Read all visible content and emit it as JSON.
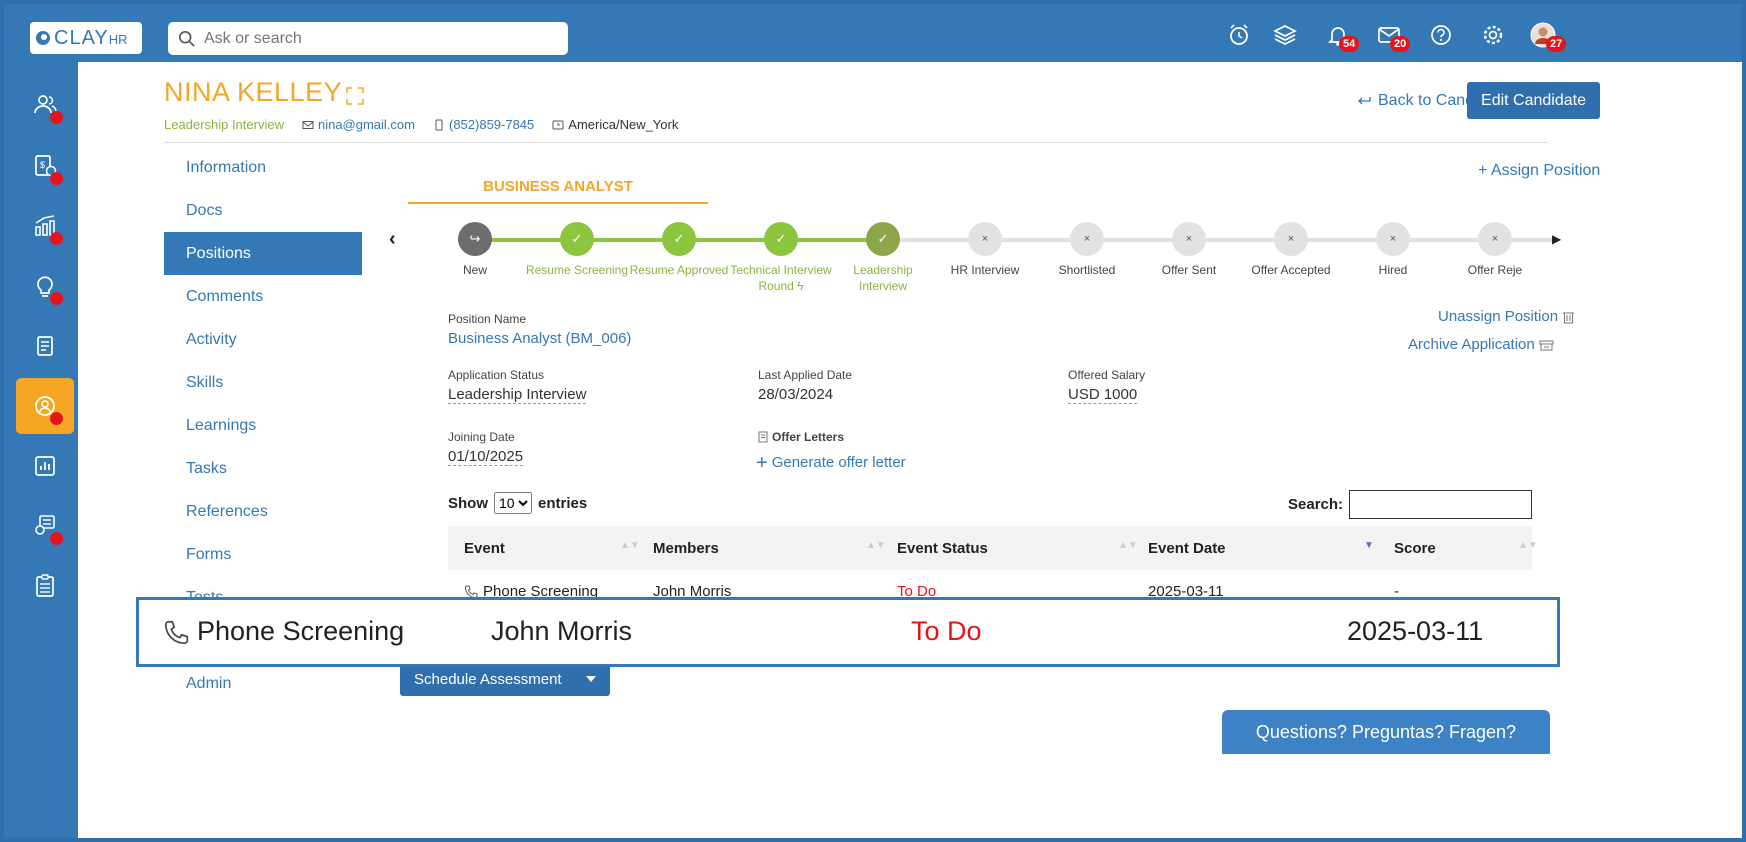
{
  "brand": {
    "name": "CLAY",
    "suffix": "HR"
  },
  "search": {
    "placeholder": "Ask or search"
  },
  "topbar": {
    "icons": [
      "alarm-clock-icon",
      "layers-icon",
      "bell-icon",
      "mail-icon",
      "help-icon",
      "gear-icon",
      "avatar"
    ],
    "notifications_count": "54",
    "mail_count": "20",
    "avatar_count": "27"
  },
  "rail": {
    "items": [
      "people-icon",
      "payroll-icon",
      "analytics-icon",
      "ideas-icon",
      "documents-icon",
      "candidate-icon",
      "reports-icon",
      "training-icon",
      "checklist-icon"
    ],
    "active_index": 5
  },
  "candidate": {
    "name": "NINA KELLEY",
    "stage": "Leadership Interview",
    "email": "nina@gmail.com",
    "phone": "(852)859-7845",
    "timezone": "America/New_York"
  },
  "header": {
    "back_label": "Back to Candidates",
    "edit_label": "Edit Candidate"
  },
  "sidenav": {
    "items": [
      "Information",
      "Docs",
      "Positions",
      "Comments",
      "Activity",
      "Skills",
      "Learnings",
      "Tasks",
      "References",
      "Forms",
      "Tests",
      "",
      "Admin"
    ],
    "active": "Positions"
  },
  "position": {
    "tab_label": "BUSINESS ANALYST",
    "assign_label": "Assign Position",
    "stages": [
      {
        "label": "New",
        "state": "new"
      },
      {
        "label": "Resume Screening",
        "state": "done"
      },
      {
        "label": "Resume Approved",
        "state": "done"
      },
      {
        "label": "Technical Interview Round",
        "state": "done"
      },
      {
        "label": "Leadership Interview",
        "state": "current"
      },
      {
        "label": "HR Interview",
        "state": "todo"
      },
      {
        "label": "Shortlisted",
        "state": "todo"
      },
      {
        "label": "Offer Sent",
        "state": "todo"
      },
      {
        "label": "Offer Accepted",
        "state": "todo"
      },
      {
        "label": "Hired",
        "state": "todo"
      },
      {
        "label": "Offer Reje",
        "state": "todo"
      }
    ],
    "name_label": "Position Name",
    "name_value": "Business Analyst (BM_006)",
    "unassign_label": "Unassign Position",
    "archive_label": "Archive Application",
    "app_status_label": "Application Status",
    "app_status_value": "Leadership Interview",
    "last_applied_label": "Last Applied Date",
    "last_applied_value": "28/03/2024",
    "salary_label": "Offered Salary",
    "salary_value": "USD 1000",
    "joining_label": "Joining Date",
    "joining_value": "01/10/2025",
    "offer_letters_label": "Offer Letters",
    "generate_label": "Generate offer letter"
  },
  "table": {
    "show_label": "Show",
    "entries_label": "entries",
    "page_size": "10",
    "search_label": "Search:",
    "columns": [
      "Event",
      "Members",
      "Event Status",
      "Event Date",
      "Score"
    ],
    "rows": [
      {
        "event": "Phone Screening",
        "members": "John Morris",
        "status": "To Do",
        "date": "2025-03-11",
        "score": "-"
      }
    ]
  },
  "schedule_label": "Schedule Assessment",
  "help_label": "Questions? Preguntas? Fragen?",
  "colors": {
    "brand_blue": "#3578b6",
    "accent_orange": "#f5a623",
    "done_green": "#8cc63f",
    "alert_red": "#e5141b"
  }
}
